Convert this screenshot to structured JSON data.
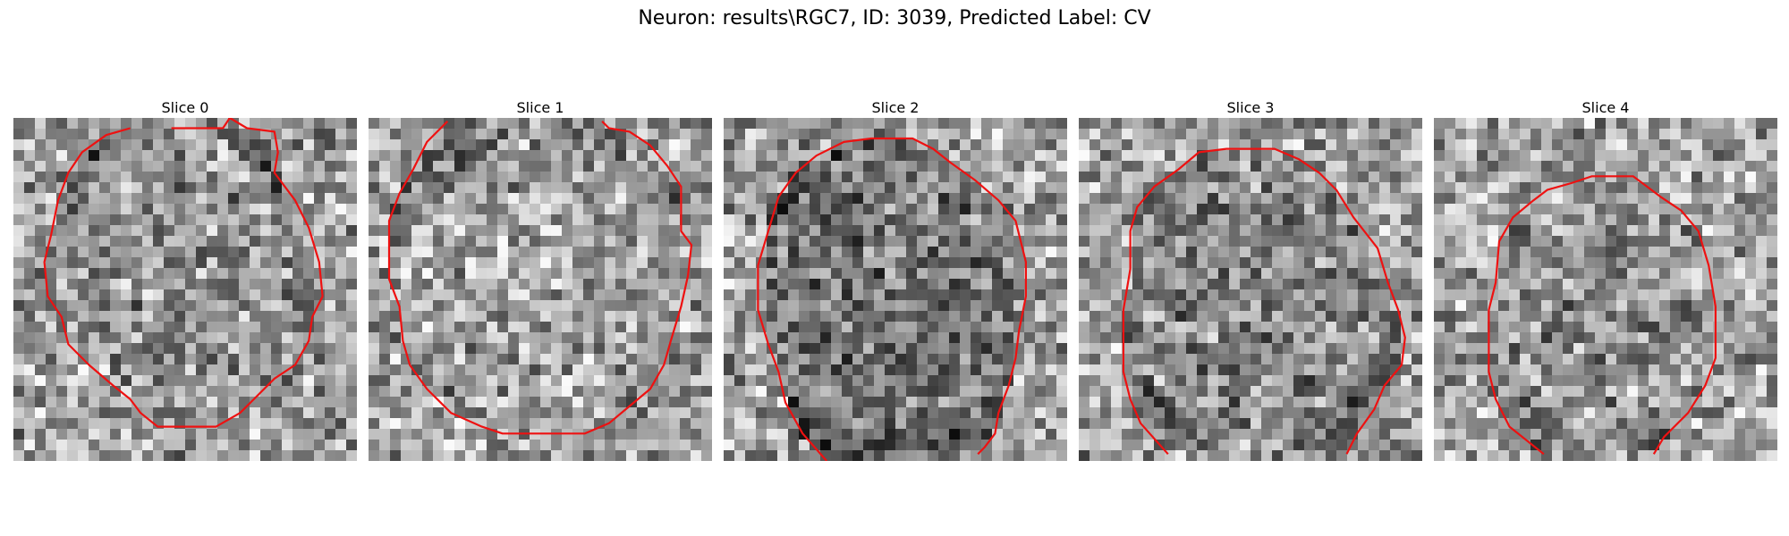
{
  "figure": {
    "title": "Neuron: results\\RGC7, ID: 3039, Predicted Label: CV"
  },
  "slices": [
    {
      "title": "Slice 0",
      "seed": 11,
      "bias": 0.05,
      "contour": [
        [
          0.46,
          0.03
        ],
        [
          0.61,
          0.03
        ],
        [
          0.63,
          0.0
        ],
        [
          0.68,
          0.03
        ],
        [
          0.76,
          0.04
        ],
        [
          0.77,
          0.1
        ],
        [
          0.76,
          0.16
        ],
        [
          0.82,
          0.24
        ],
        [
          0.86,
          0.32
        ],
        [
          0.89,
          0.42
        ],
        [
          0.9,
          0.52
        ],
        [
          0.87,
          0.58
        ],
        [
          0.86,
          0.65
        ],
        [
          0.82,
          0.72
        ],
        [
          0.76,
          0.76
        ],
        [
          0.7,
          0.82
        ],
        [
          0.66,
          0.86
        ],
        [
          0.59,
          0.9
        ],
        [
          0.42,
          0.9
        ],
        [
          0.37,
          0.86
        ],
        [
          0.34,
          0.82
        ],
        [
          0.29,
          0.78
        ],
        [
          0.22,
          0.72
        ],
        [
          0.16,
          0.66
        ],
        [
          0.14,
          0.58
        ],
        [
          0.1,
          0.52
        ],
        [
          0.09,
          0.42
        ],
        [
          0.11,
          0.34
        ],
        [
          0.13,
          0.24
        ],
        [
          0.16,
          0.16
        ],
        [
          0.2,
          0.1
        ],
        [
          0.27,
          0.05
        ],
        [
          0.34,
          0.03
        ]
      ]
    },
    {
      "title": "Slice 1",
      "seed": 23,
      "bias": 0.12,
      "contour": [
        [
          0.23,
          0.01
        ],
        [
          0.17,
          0.07
        ],
        [
          0.13,
          0.15
        ],
        [
          0.09,
          0.22
        ],
        [
          0.06,
          0.3
        ],
        [
          0.06,
          0.47
        ],
        [
          0.09,
          0.55
        ],
        [
          0.1,
          0.65
        ],
        [
          0.12,
          0.72
        ],
        [
          0.17,
          0.79
        ],
        [
          0.24,
          0.86
        ],
        [
          0.33,
          0.9
        ],
        [
          0.39,
          0.92
        ],
        [
          0.63,
          0.92
        ],
        [
          0.7,
          0.89
        ],
        [
          0.76,
          0.84
        ],
        [
          0.82,
          0.79
        ],
        [
          0.86,
          0.72
        ],
        [
          0.88,
          0.65
        ],
        [
          0.91,
          0.55
        ],
        [
          0.93,
          0.46
        ],
        [
          0.94,
          0.37
        ],
        [
          0.91,
          0.33
        ],
        [
          0.91,
          0.2
        ],
        [
          0.87,
          0.14
        ],
        [
          0.82,
          0.08
        ],
        [
          0.76,
          0.04
        ],
        [
          0.7,
          0.03
        ],
        [
          0.68,
          0.01
        ]
      ]
    },
    {
      "title": "Slice 2",
      "seed": 37,
      "bias": -0.05,
      "contour": [
        [
          0.3,
          1.0
        ],
        [
          0.23,
          0.92
        ],
        [
          0.18,
          0.83
        ],
        [
          0.16,
          0.74
        ],
        [
          0.13,
          0.66
        ],
        [
          0.1,
          0.56
        ],
        [
          0.1,
          0.43
        ],
        [
          0.13,
          0.33
        ],
        [
          0.16,
          0.23
        ],
        [
          0.21,
          0.16
        ],
        [
          0.27,
          0.11
        ],
        [
          0.35,
          0.07
        ],
        [
          0.43,
          0.06
        ],
        [
          0.55,
          0.06
        ],
        [
          0.61,
          0.09
        ],
        [
          0.66,
          0.13
        ],
        [
          0.73,
          0.18
        ],
        [
          0.8,
          0.24
        ],
        [
          0.85,
          0.3
        ],
        [
          0.88,
          0.42
        ],
        [
          0.88,
          0.52
        ],
        [
          0.86,
          0.62
        ],
        [
          0.85,
          0.7
        ],
        [
          0.83,
          0.78
        ],
        [
          0.8,
          0.86
        ],
        [
          0.79,
          0.92
        ],
        [
          0.76,
          0.96
        ],
        [
          0.74,
          0.98
        ]
      ]
    },
    {
      "title": "Slice 3",
      "seed": 53,
      "bias": 0.02,
      "contour": [
        [
          0.26,
          0.98
        ],
        [
          0.18,
          0.89
        ],
        [
          0.15,
          0.82
        ],
        [
          0.13,
          0.74
        ],
        [
          0.13,
          0.56
        ],
        [
          0.15,
          0.44
        ],
        [
          0.15,
          0.33
        ],
        [
          0.17,
          0.26
        ],
        [
          0.22,
          0.2
        ],
        [
          0.29,
          0.15
        ],
        [
          0.35,
          0.1
        ],
        [
          0.43,
          0.09
        ],
        [
          0.57,
          0.09
        ],
        [
          0.64,
          0.12
        ],
        [
          0.7,
          0.16
        ],
        [
          0.75,
          0.21
        ],
        [
          0.8,
          0.29
        ],
        [
          0.87,
          0.38
        ],
        [
          0.9,
          0.48
        ],
        [
          0.93,
          0.56
        ],
        [
          0.95,
          0.64
        ],
        [
          0.94,
          0.72
        ],
        [
          0.89,
          0.78
        ],
        [
          0.86,
          0.85
        ],
        [
          0.81,
          0.92
        ],
        [
          0.78,
          0.98
        ]
      ]
    },
    {
      "title": "Slice 4",
      "seed": 71,
      "bias": 0.06,
      "contour": [
        [
          0.32,
          0.98
        ],
        [
          0.22,
          0.9
        ],
        [
          0.18,
          0.82
        ],
        [
          0.16,
          0.74
        ],
        [
          0.16,
          0.56
        ],
        [
          0.18,
          0.48
        ],
        [
          0.19,
          0.36
        ],
        [
          0.23,
          0.29
        ],
        [
          0.29,
          0.24
        ],
        [
          0.33,
          0.21
        ],
        [
          0.4,
          0.19
        ],
        [
          0.46,
          0.17
        ],
        [
          0.58,
          0.17
        ],
        [
          0.62,
          0.2
        ],
        [
          0.66,
          0.23
        ],
        [
          0.72,
          0.27
        ],
        [
          0.77,
          0.33
        ],
        [
          0.8,
          0.43
        ],
        [
          0.82,
          0.55
        ],
        [
          0.82,
          0.7
        ],
        [
          0.79,
          0.78
        ],
        [
          0.74,
          0.86
        ],
        [
          0.67,
          0.93
        ],
        [
          0.64,
          0.98
        ]
      ]
    }
  ]
}
